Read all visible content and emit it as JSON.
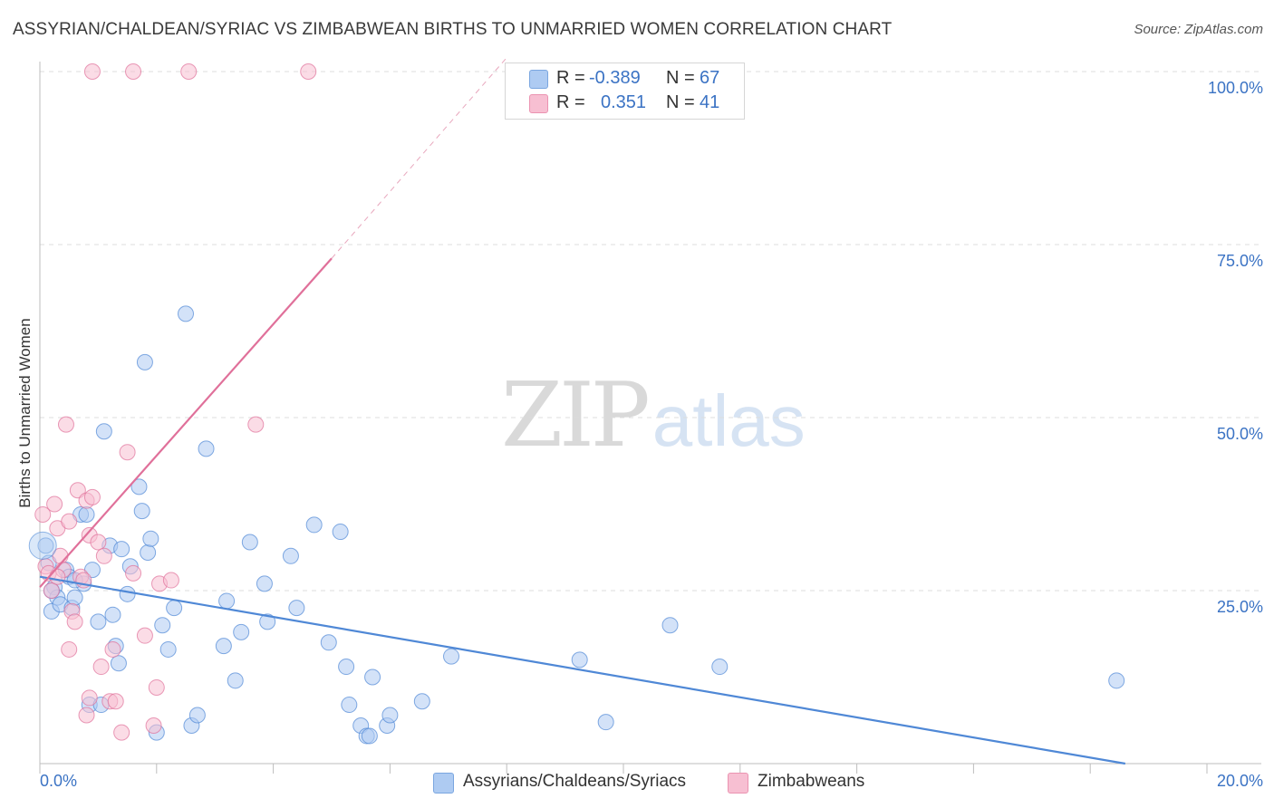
{
  "title": "ASSYRIAN/CHALDEAN/SYRIAC VS ZIMBABWEAN BIRTHS TO UNMARRIED WOMEN CORRELATION CHART",
  "source": "Source: ZipAtlas.com",
  "watermark": {
    "zip": "ZIP",
    "atlas": "atlas"
  },
  "legend": {
    "rows": [
      {
        "r_label": "R =",
        "r_value": "-0.389",
        "n_label": "N =",
        "n_value": "67",
        "color": "#aecbf2"
      },
      {
        "r_label": "R =",
        "r_value": "0.351",
        "n_label": "N =",
        "n_value": "41",
        "color": "#f7bfd2"
      }
    ]
  },
  "bottom_legend": {
    "items": [
      {
        "label": "Assyrians/Chaldeans/Syriacs",
        "color": "#aecbf2"
      },
      {
        "label": "Zimbabweans",
        "color": "#f7bfd2"
      }
    ]
  },
  "chart_data": {
    "type": "scatter",
    "title": "ASSYRIAN/CHALDEAN/SYRIAC VS ZIMBABWEAN BIRTHS TO UNMARRIED WOMEN CORRELATION CHART",
    "xlabel": "",
    "ylabel": "Births to Unmarried Women",
    "xlim": [
      0,
      20
    ],
    "ylim": [
      0,
      100
    ],
    "y_ticks": [
      {
        "value": 100,
        "label": "100.0%"
      },
      {
        "value": 75,
        "label": "75.0%"
      },
      {
        "value": 50,
        "label": "50.0%"
      },
      {
        "value": 25,
        "label": "25.0%"
      }
    ],
    "x_ticks": [
      {
        "value": 0,
        "label": "0.0%"
      },
      {
        "value": 20,
        "label": "20.0%"
      }
    ],
    "grid": true,
    "legend_position": "top-center",
    "series": [
      {
        "name": "Assyrians/Chaldeans/Syriacs",
        "color": "#4f88d6",
        "fill": "#aecbf2",
        "r": -0.389,
        "n": 67,
        "trend": {
          "x0": 0,
          "y0": 27.0,
          "x1": 18.6,
          "y1": 0.0
        },
        "points": [
          [
            0.1,
            31.5
          ],
          [
            0.15,
            29.0
          ],
          [
            0.2,
            22.0
          ],
          [
            0.25,
            25.5
          ],
          [
            0.3,
            24.0
          ],
          [
            0.35,
            23.0
          ],
          [
            0.45,
            28.0
          ],
          [
            0.5,
            27.0
          ],
          [
            0.55,
            22.5
          ],
          [
            0.6,
            24.0
          ],
          [
            0.7,
            36.0
          ],
          [
            0.75,
            26.0
          ],
          [
            0.8,
            36.0
          ],
          [
            0.85,
            8.5
          ],
          [
            0.9,
            28.0
          ],
          [
            1.0,
            20.5
          ],
          [
            1.05,
            8.5
          ],
          [
            1.1,
            48.0
          ],
          [
            1.2,
            31.5
          ],
          [
            1.25,
            21.5
          ],
          [
            1.3,
            17.0
          ],
          [
            1.35,
            14.5
          ],
          [
            1.4,
            31.0
          ],
          [
            1.5,
            24.5
          ],
          [
            1.55,
            28.5
          ],
          [
            1.7,
            40.0
          ],
          [
            1.75,
            36.5
          ],
          [
            1.8,
            58.0
          ],
          [
            1.85,
            30.5
          ],
          [
            1.9,
            32.5
          ],
          [
            2.0,
            4.5
          ],
          [
            2.1,
            20.0
          ],
          [
            2.2,
            16.5
          ],
          [
            2.3,
            22.5
          ],
          [
            2.5,
            65.0
          ],
          [
            2.6,
            5.5
          ],
          [
            2.7,
            7.0
          ],
          [
            2.85,
            45.5
          ],
          [
            3.15,
            17.0
          ],
          [
            3.2,
            23.5
          ],
          [
            3.35,
            12.0
          ],
          [
            3.45,
            19.0
          ],
          [
            3.6,
            32.0
          ],
          [
            3.85,
            26.0
          ],
          [
            3.9,
            20.5
          ],
          [
            4.3,
            30.0
          ],
          [
            4.4,
            22.5
          ],
          [
            4.7,
            34.5
          ],
          [
            4.95,
            17.5
          ],
          [
            5.15,
            33.5
          ],
          [
            5.25,
            14.0
          ],
          [
            5.3,
            8.5
          ],
          [
            5.5,
            5.5
          ],
          [
            5.6,
            4.0
          ],
          [
            5.7,
            12.5
          ],
          [
            5.65,
            4.0
          ],
          [
            5.95,
            5.5
          ],
          [
            6.0,
            7.0
          ],
          [
            6.55,
            9.0
          ],
          [
            7.05,
            15.5
          ],
          [
            9.25,
            15.0
          ],
          [
            9.7,
            6.0
          ],
          [
            10.8,
            20.0
          ],
          [
            11.65,
            14.0
          ],
          [
            18.45,
            12.0
          ],
          [
            0.2,
            25.0
          ],
          [
            0.6,
            26.5
          ]
        ]
      },
      {
        "name": "Zimbabweans",
        "color": "#e0709a",
        "fill": "#f7bfd2",
        "r": 0.351,
        "n": 41,
        "trend": {
          "x0": 0,
          "y0": 25.5,
          "x1": 5.0,
          "y1": 73.0
        },
        "trend_extension": {
          "x0": 5.0,
          "y0": 73.0,
          "x1": 8.0,
          "y1": 102.0
        },
        "points": [
          [
            0.05,
            36.0
          ],
          [
            0.1,
            28.5
          ],
          [
            0.15,
            27.5
          ],
          [
            0.2,
            25.0
          ],
          [
            0.25,
            37.5
          ],
          [
            0.3,
            34.0
          ],
          [
            0.35,
            30.0
          ],
          [
            0.4,
            28.0
          ],
          [
            0.45,
            49.0
          ],
          [
            0.5,
            35.0
          ],
          [
            0.55,
            22.0
          ],
          [
            0.6,
            20.5
          ],
          [
            0.65,
            39.5
          ],
          [
            0.7,
            27.0
          ],
          [
            0.75,
            26.5
          ],
          [
            0.8,
            38.0
          ],
          [
            0.85,
            33.0
          ],
          [
            0.9,
            38.5
          ],
          [
            1.0,
            32.0
          ],
          [
            1.05,
            14.0
          ],
          [
            1.1,
            30.0
          ],
          [
            1.2,
            9.0
          ],
          [
            1.25,
            16.5
          ],
          [
            1.3,
            9.0
          ],
          [
            1.4,
            4.5
          ],
          [
            1.5,
            45.0
          ],
          [
            1.6,
            27.5
          ],
          [
            1.8,
            18.5
          ],
          [
            1.95,
            5.5
          ],
          [
            2.0,
            11.0
          ],
          [
            2.05,
            26.0
          ],
          [
            2.25,
            26.5
          ],
          [
            3.7,
            49.0
          ],
          [
            0.5,
            16.5
          ],
          [
            0.8,
            7.0
          ],
          [
            0.85,
            9.5
          ],
          [
            0.9,
            100.0
          ],
          [
            1.6,
            100.0
          ],
          [
            2.55,
            100.0
          ],
          [
            4.6,
            100.0
          ],
          [
            0.3,
            27.0
          ]
        ]
      }
    ]
  }
}
